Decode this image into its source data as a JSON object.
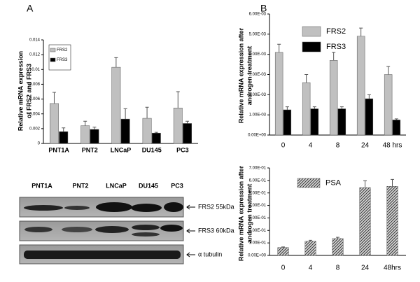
{
  "panels": [
    "A",
    "B"
  ],
  "blot": {
    "lanes": [
      "PNT1A",
      "PNT2",
      "LNCaP",
      "DU145",
      "PC3"
    ],
    "bands": [
      "FRS2 55kDa",
      "FRS3 60kDa",
      "α tubulin"
    ]
  },
  "chart_data": [
    {
      "type": "bar",
      "ylabel": [
        "Relative mRNA expression",
        "of  FRS2 and FRS3"
      ],
      "categories": [
        "PNT1A",
        "PNT2",
        "LNCaP",
        "DU145",
        "PC3"
      ],
      "series": [
        {
          "name": "FRS2",
          "color": "#c0c0c0",
          "values": [
            0.0054,
            0.0024,
            0.0103,
            0.0034,
            0.0048
          ],
          "errors": [
            0.0015,
            0.0006,
            0.0013,
            0.0015,
            0.0022
          ]
        },
        {
          "name": "FRS3",
          "color": "#000000",
          "values": [
            0.0016,
            0.0019,
            0.0033,
            0.0014,
            0.0027
          ],
          "errors": [
            0.0005,
            0.0003,
            0.0014,
            0.0001,
            0.0003
          ]
        }
      ],
      "ylim": [
        0,
        0.014
      ],
      "yticks": [
        0,
        0.002,
        0.004,
        0.006,
        0.008,
        0.01,
        0.012,
        0.014
      ],
      "legend": "top-left"
    },
    {
      "type": "bar",
      "ylabel": [
        "Relative mRNA expression after",
        "androgen treatment"
      ],
      "categories": [
        "0",
        "4",
        "8",
        "24",
        "48 hrs"
      ],
      "series": [
        {
          "name": "FRS2",
          "color": "#c0c0c0",
          "values": [
            0.0041,
            0.0026,
            0.0037,
            0.0049,
            0.003
          ],
          "errors": [
            0.0004,
            0.0004,
            0.0004,
            0.0004,
            0.0004
          ]
        },
        {
          "name": "FRS3",
          "color": "#000000",
          "values": [
            0.00125,
            0.0013,
            0.0013,
            0.0018,
            0.00075
          ],
          "errors": [
            0.00015,
            0.0001,
            0.0001,
            0.0002,
            5e-05
          ]
        }
      ],
      "ylim": [
        0,
        0.006
      ],
      "yticks": [
        {
          "value": 0,
          "label": "0.00E+00"
        },
        {
          "value": 0.001,
          "label": "1.00E-03"
        },
        {
          "value": 0.002,
          "label": "2.00E-03"
        },
        {
          "value": 0.003,
          "label": "3.00E-03"
        },
        {
          "value": 0.004,
          "label": "4.00E-03"
        },
        {
          "value": 0.005,
          "label": "5.00E-03"
        },
        {
          "value": 0.006,
          "label": "6.00E-03"
        }
      ],
      "legend": "top-left"
    },
    {
      "type": "bar",
      "ylabel": [
        "Relative mRNA expression after",
        "androgen treatment"
      ],
      "categories": [
        "0",
        "4",
        "8",
        "24",
        "48hrs"
      ],
      "series": [
        {
          "name": "PSA",
          "color": "#808080",
          "pattern": "hatch",
          "values": [
            0.063,
            0.113,
            0.135,
            0.543,
            0.553
          ],
          "errors": [
            0.005,
            0.008,
            0.01,
            0.055,
            0.055
          ]
        }
      ],
      "ylim": [
        0,
        0.7
      ],
      "yticks": [
        {
          "value": 0,
          "label": "0.00E+00"
        },
        {
          "value": 0.1,
          "label": "1.00E-01"
        },
        {
          "value": 0.2,
          "label": "2.00E-01"
        },
        {
          "value": 0.3,
          "label": "3.00E-01"
        },
        {
          "value": 0.4,
          "label": "4.00E-01"
        },
        {
          "value": 0.5,
          "label": "5.00E-01"
        },
        {
          "value": 0.6,
          "label": "6.00E-01"
        },
        {
          "value": 0.7,
          "label": "7.00E-01"
        }
      ],
      "legend": "top-left"
    }
  ]
}
